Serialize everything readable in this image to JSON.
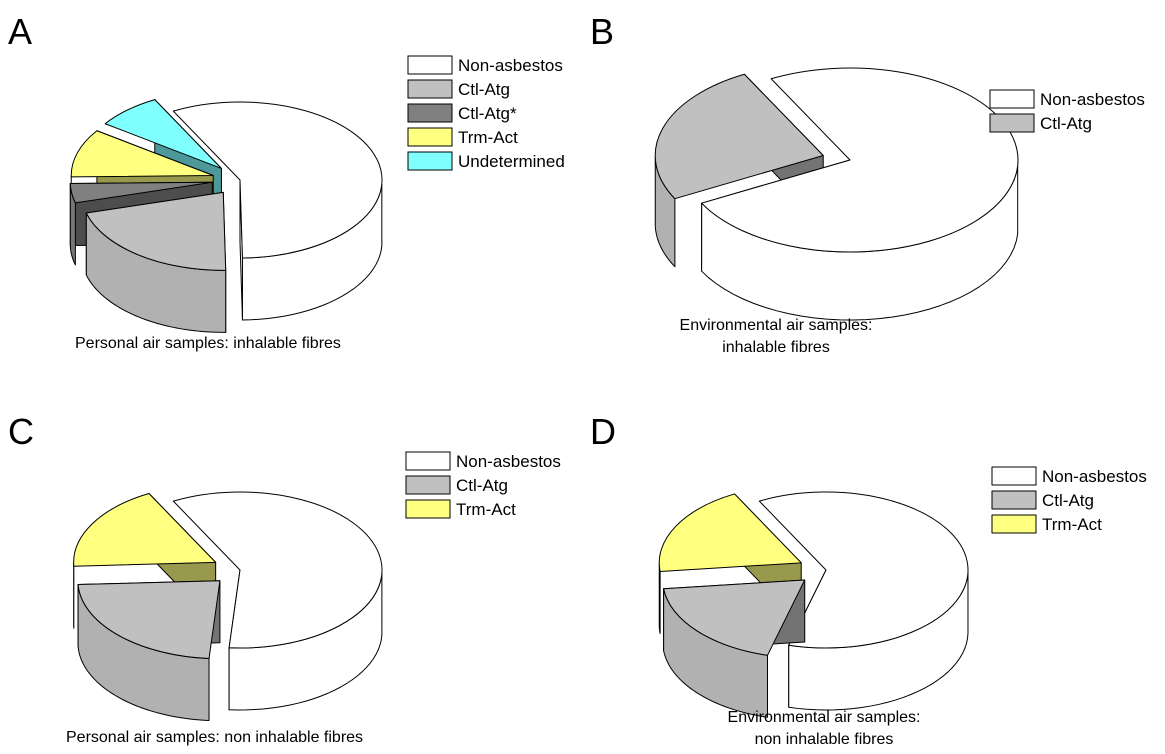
{
  "colors": {
    "Non-asbestos": "#ffffff",
    "Ctl-Atg": "#c0c0c0",
    "Ctl-Atg*": "#808080",
    "Trm-Act": "#ffff80",
    "Undetermined": "#80ffff"
  },
  "chart_data": [
    {
      "type": "pie",
      "panel": "A",
      "caption": [
        "Personal air samples: inhalable fibres"
      ],
      "legend": [
        "Non-asbestos",
        "Ctl-Atg",
        "Ctl-Atg*",
        "Trm-Act",
        "Undetermined"
      ],
      "legend_position": "top-right",
      "style": "3d-exploded",
      "slices": [
        {
          "label": "Non-asbestos",
          "value": 57.5
        },
        {
          "label": "Ctl-Atg",
          "value": 21
        },
        {
          "label": "Ctl-Atg*",
          "value": 4
        },
        {
          "label": "Trm-Act",
          "value": 10
        },
        {
          "label": "Undetermined",
          "value": 7.5
        }
      ]
    },
    {
      "type": "pie",
      "panel": "B",
      "caption": [
        "Environmental air samples:",
        "inhalable fibres"
      ],
      "legend": [
        "Non-asbestos",
        "Ctl-Atg"
      ],
      "legend_position": "top-right",
      "style": "3d-exploded",
      "slices": [
        {
          "label": "Non-asbestos",
          "value": 75
        },
        {
          "label": "Ctl-Atg",
          "value": 25
        }
      ]
    },
    {
      "type": "pie",
      "panel": "C",
      "caption": [
        "Personal air samples: non inhalable fibres"
      ],
      "legend": [
        "Non-asbestos",
        "Ctl-Atg",
        "Trm-Act"
      ],
      "legend_position": "top-right",
      "style": "3d-exploded",
      "slices": [
        {
          "label": "Non-asbestos",
          "value": 59
        },
        {
          "label": "Ctl-Atg",
          "value": 23
        },
        {
          "label": "Trm-Act",
          "value": 18
        }
      ]
    },
    {
      "type": "pie",
      "panel": "D",
      "caption": [
        "Environmental air samples:",
        "non inhalable fibres"
      ],
      "legend": [
        "Non-asbestos",
        "Ctl-Atg",
        "Trm-Act"
      ],
      "legend_position": "top-right",
      "style": "3d-exploded",
      "slices": [
        {
          "label": "Non-asbestos",
          "value": 62
        },
        {
          "label": "Ctl-Atg",
          "value": 19
        },
        {
          "label": "Trm-Act",
          "value": 19
        }
      ]
    }
  ]
}
